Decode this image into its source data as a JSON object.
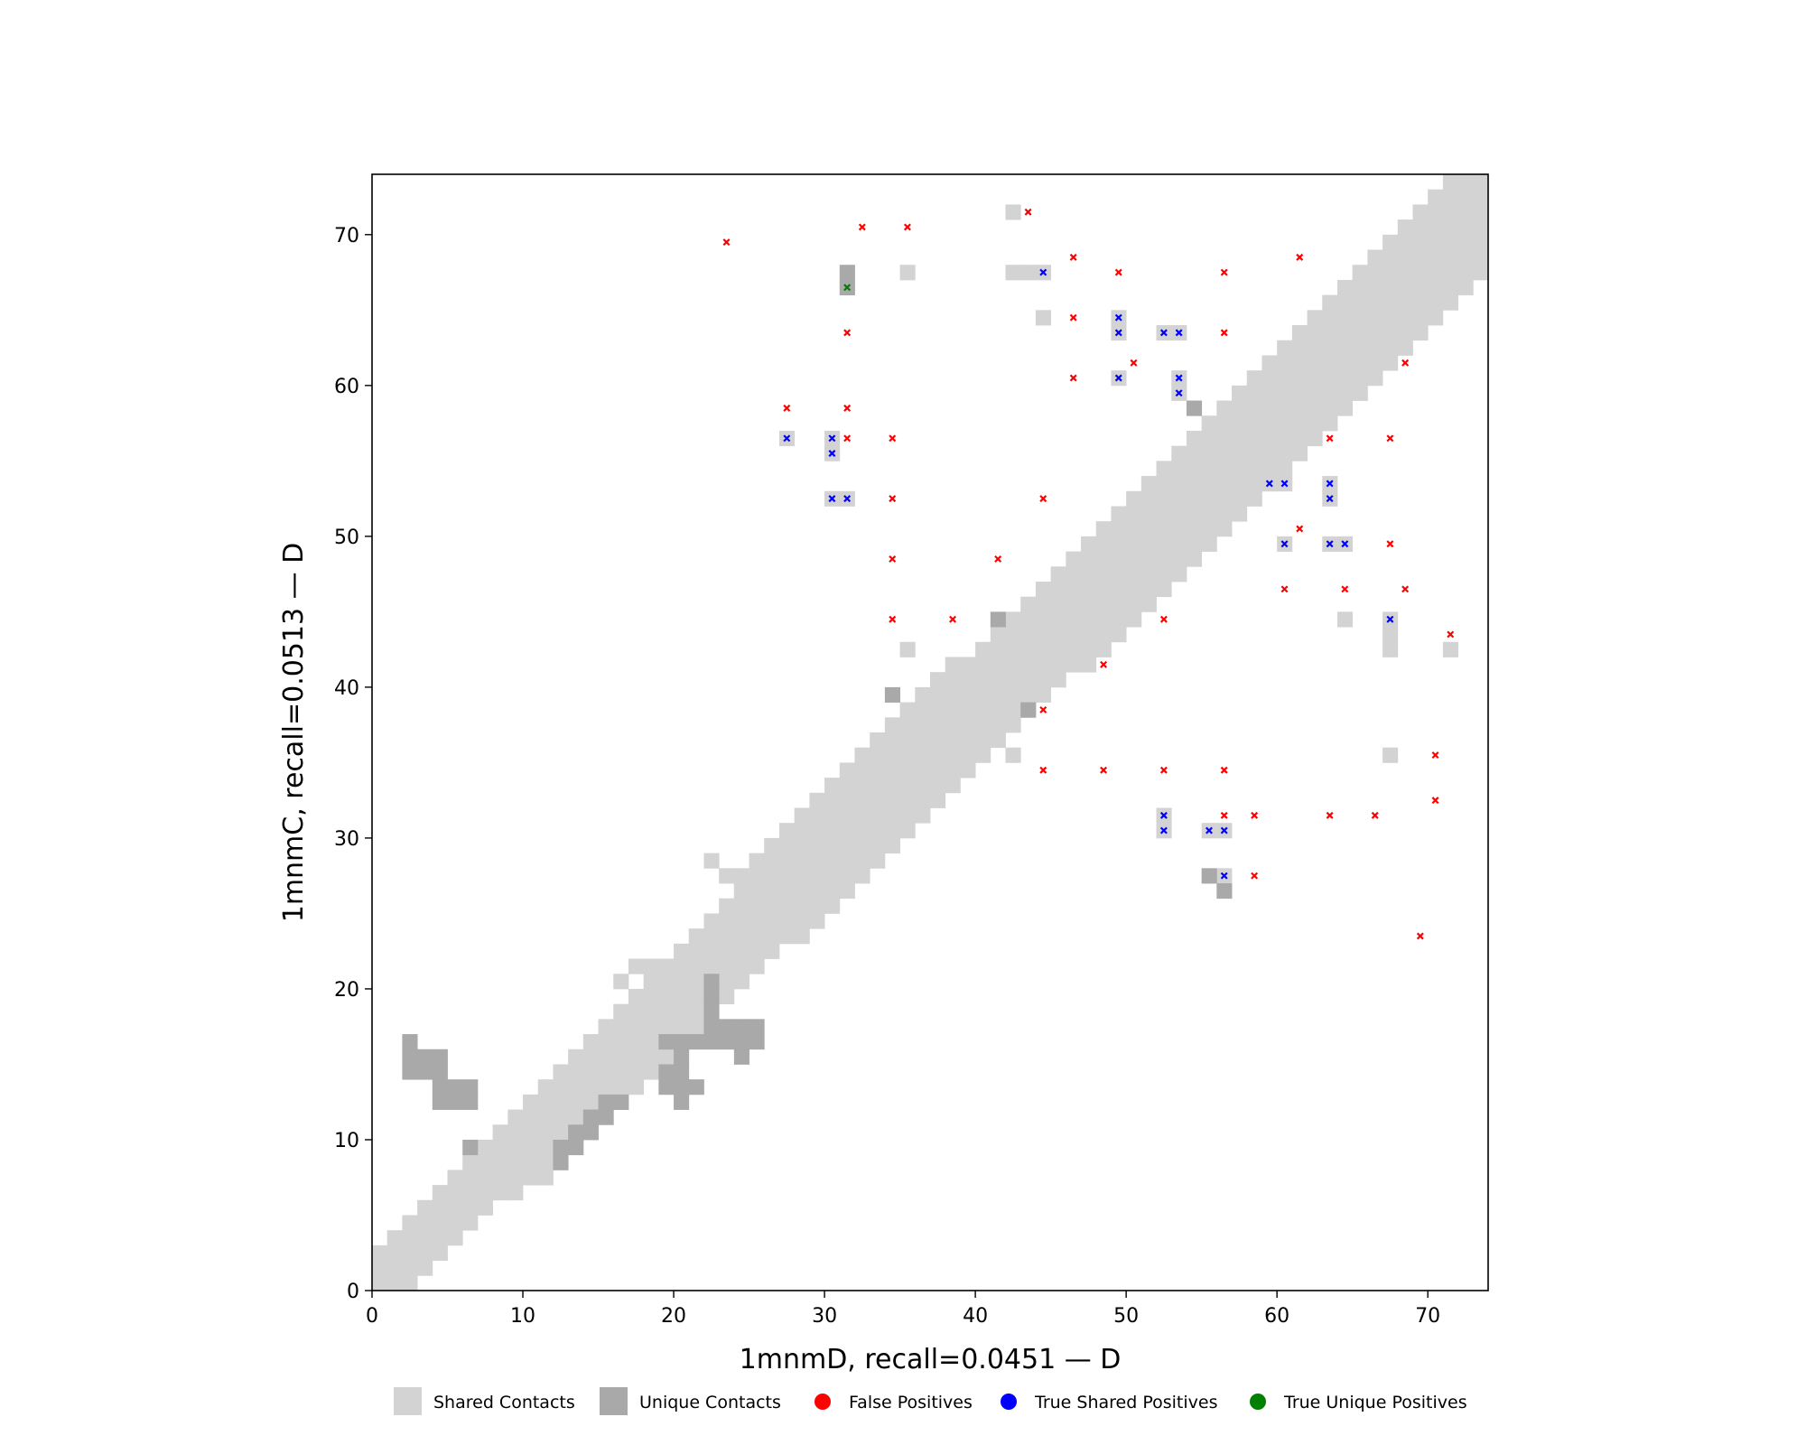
{
  "chart_data": {
    "type": "heatmap",
    "title": "",
    "xlabel": "1mnmD, recall=0.0451 — D",
    "ylabel": "1mnmC, recall=0.0513 — D",
    "xlim": [
      0,
      74
    ],
    "ylim": [
      0,
      74
    ],
    "xticks": [
      0,
      10,
      20,
      30,
      40,
      50,
      60,
      70
    ],
    "yticks": [
      0,
      10,
      20,
      30,
      40,
      50,
      60,
      70
    ],
    "legend_position": "bottom",
    "legend": [
      {
        "label": "Shared Contacts",
        "kind": "square",
        "color": "#d3d3d3"
      },
      {
        "label": "Unique Contacts",
        "kind": "square",
        "color": "#a9a9a9"
      },
      {
        "label": "False Positives",
        "kind": "dot",
        "color": "#ff0000"
      },
      {
        "label": "True Shared Positives",
        "kind": "dot",
        "color": "#0000ff"
      },
      {
        "label": "True Unique Positives",
        "kind": "dot",
        "color": "#008000"
      }
    ],
    "band_profile": [
      [
        0,
        0,
        2
      ],
      [
        1,
        0,
        3
      ],
      [
        2,
        0,
        4
      ],
      [
        3,
        1,
        5
      ],
      [
        4,
        2,
        6
      ],
      [
        5,
        3,
        7
      ],
      [
        6,
        4,
        8
      ],
      [
        7,
        5,
        9
      ],
      [
        8,
        6,
        10
      ],
      [
        9,
        6,
        11
      ],
      [
        10,
        7,
        12
      ],
      [
        11,
        7,
        13
      ],
      [
        12,
        8,
        14
      ],
      [
        13,
        9,
        15
      ],
      [
        14,
        10,
        16
      ],
      [
        15,
        11,
        17
      ],
      [
        16,
        12,
        18
      ],
      [
        17,
        13,
        19
      ],
      [
        18,
        14,
        20
      ],
      [
        19,
        15,
        21
      ],
      [
        20,
        16,
        22
      ],
      [
        21,
        17,
        23
      ],
      [
        22,
        18,
        24
      ],
      [
        23,
        19,
        25
      ],
      [
        24,
        20,
        27
      ],
      [
        25,
        21,
        28
      ],
      [
        26,
        22,
        29
      ],
      [
        27,
        23,
        30
      ],
      [
        28,
        23,
        31
      ],
      [
        29,
        24,
        32
      ],
      [
        30,
        25,
        33
      ],
      [
        31,
        26,
        34
      ],
      [
        32,
        27,
        35
      ],
      [
        33,
        28,
        36
      ],
      [
        34,
        29,
        37
      ],
      [
        35,
        30,
        38
      ],
      [
        36,
        31,
        39
      ],
      [
        37,
        32,
        40
      ],
      [
        38,
        33,
        41
      ],
      [
        39,
        34,
        41
      ],
      [
        40,
        35,
        42
      ],
      [
        41,
        36,
        43
      ],
      [
        42,
        37,
        44
      ],
      [
        43,
        38,
        45
      ],
      [
        44,
        39,
        46
      ],
      [
        45,
        40,
        47
      ],
      [
        46,
        41,
        48
      ],
      [
        47,
        41,
        49
      ],
      [
        48,
        42,
        50
      ],
      [
        49,
        43,
        51
      ],
      [
        50,
        44,
        52
      ],
      [
        51,
        45,
        53
      ],
      [
        52,
        46,
        54
      ],
      [
        53,
        47,
        55
      ],
      [
        54,
        48,
        56
      ],
      [
        55,
        49,
        57
      ],
      [
        56,
        50,
        58
      ],
      [
        57,
        51,
        59
      ],
      [
        58,
        52,
        60
      ],
      [
        59,
        53,
        61
      ],
      [
        60,
        54,
        62
      ],
      [
        61,
        55,
        63
      ],
      [
        62,
        56,
        64
      ],
      [
        63,
        57,
        65
      ],
      [
        64,
        58,
        66
      ],
      [
        65,
        59,
        67
      ],
      [
        66,
        60,
        68
      ],
      [
        67,
        61,
        69
      ],
      [
        68,
        62,
        70
      ],
      [
        69,
        63,
        71
      ],
      [
        70,
        64,
        72
      ],
      [
        71,
        65,
        73
      ],
      [
        72,
        66,
        73
      ],
      [
        73,
        67,
        73
      ]
    ],
    "shared_contacts": [
      [
        35,
        67
      ],
      [
        42,
        71
      ],
      [
        42,
        67
      ],
      [
        43,
        67
      ],
      [
        44,
        67
      ],
      [
        44,
        64
      ],
      [
        49,
        64
      ],
      [
        49,
        63
      ],
      [
        49,
        60
      ],
      [
        52,
        63
      ],
      [
        53,
        63
      ],
      [
        53,
        60
      ],
      [
        53,
        59
      ],
      [
        27,
        56
      ],
      [
        30,
        56
      ],
      [
        30,
        55
      ],
      [
        30,
        52
      ],
      [
        31,
        52
      ],
      [
        59,
        53
      ],
      [
        60,
        53
      ],
      [
        63,
        53
      ],
      [
        63,
        52
      ],
      [
        60,
        49
      ],
      [
        63,
        49
      ],
      [
        64,
        49
      ],
      [
        64,
        44
      ],
      [
        67,
        44
      ],
      [
        67,
        43
      ],
      [
        67,
        42
      ],
      [
        71,
        42
      ],
      [
        35,
        42
      ],
      [
        42,
        35
      ],
      [
        67,
        35
      ],
      [
        52,
        31
      ],
      [
        52,
        30
      ],
      [
        55,
        30
      ],
      [
        56,
        30
      ],
      [
        56,
        27
      ],
      [
        22,
        28
      ],
      [
        23,
        27
      ],
      [
        24,
        26
      ],
      [
        17,
        21
      ],
      [
        18,
        21
      ],
      [
        16,
        20
      ]
    ],
    "unique_contacts": [
      [
        31,
        67
      ],
      [
        31,
        66
      ],
      [
        54,
        58
      ],
      [
        41,
        44
      ],
      [
        34,
        39
      ],
      [
        43,
        38
      ],
      [
        55,
        27
      ],
      [
        56,
        26
      ],
      [
        2,
        16
      ],
      [
        2,
        15
      ],
      [
        2,
        14
      ],
      [
        3,
        15
      ],
      [
        3,
        14
      ],
      [
        4,
        15
      ],
      [
        4,
        14
      ],
      [
        4,
        13
      ],
      [
        4,
        12
      ],
      [
        5,
        13
      ],
      [
        5,
        12
      ],
      [
        6,
        13
      ],
      [
        6,
        12
      ],
      [
        6,
        9
      ],
      [
        12,
        8
      ],
      [
        12,
        9
      ],
      [
        13,
        9
      ],
      [
        13,
        10
      ],
      [
        14,
        10
      ],
      [
        14,
        11
      ],
      [
        15,
        11
      ],
      [
        15,
        12
      ],
      [
        16,
        12
      ],
      [
        22,
        20
      ],
      [
        22,
        19
      ],
      [
        22,
        18
      ],
      [
        22,
        17
      ],
      [
        22,
        16
      ],
      [
        21,
        16
      ],
      [
        20,
        16
      ],
      [
        19,
        16
      ],
      [
        23,
        17
      ],
      [
        23,
        16
      ],
      [
        24,
        17
      ],
      [
        24,
        16
      ],
      [
        25,
        17
      ],
      [
        25,
        16
      ],
      [
        24,
        15
      ],
      [
        19,
        14
      ],
      [
        19,
        13
      ],
      [
        20,
        15
      ],
      [
        20,
        14
      ],
      [
        20,
        13
      ],
      [
        20,
        12
      ],
      [
        21,
        13
      ]
    ],
    "false_positives": [
      [
        23,
        69
      ],
      [
        32,
        70
      ],
      [
        35,
        70
      ],
      [
        43,
        71
      ],
      [
        46,
        68
      ],
      [
        49,
        67
      ],
      [
        56,
        67
      ],
      [
        61,
        68
      ],
      [
        31,
        63
      ],
      [
        46,
        64
      ],
      [
        56,
        63
      ],
      [
        50,
        61
      ],
      [
        46,
        60
      ],
      [
        68,
        61
      ],
      [
        27,
        58
      ],
      [
        31,
        58
      ],
      [
        31,
        56
      ],
      [
        34,
        56
      ],
      [
        63,
        56
      ],
      [
        67,
        56
      ],
      [
        34,
        52
      ],
      [
        44,
        52
      ],
      [
        61,
        50
      ],
      [
        67,
        49
      ],
      [
        34,
        48
      ],
      [
        41,
        48
      ],
      [
        60,
        46
      ],
      [
        64,
        46
      ],
      [
        68,
        46
      ],
      [
        34,
        44
      ],
      [
        38,
        44
      ],
      [
        52,
        44
      ],
      [
        71,
        43
      ],
      [
        48,
        41
      ],
      [
        44,
        38
      ],
      [
        70,
        35
      ],
      [
        44,
        34
      ],
      [
        48,
        34
      ],
      [
        52,
        34
      ],
      [
        56,
        34
      ],
      [
        70,
        32
      ],
      [
        56,
        31
      ],
      [
        58,
        31
      ],
      [
        63,
        31
      ],
      [
        66,
        31
      ],
      [
        58,
        27
      ],
      [
        69,
        23
      ]
    ],
    "true_shared_positives": [
      [
        44,
        67
      ],
      [
        49,
        64
      ],
      [
        49,
        63
      ],
      [
        52,
        63
      ],
      [
        53,
        63
      ],
      [
        49,
        60
      ],
      [
        53,
        60
      ],
      [
        53,
        59
      ],
      [
        27,
        56
      ],
      [
        30,
        56
      ],
      [
        30,
        55
      ],
      [
        30,
        52
      ],
      [
        31,
        52
      ],
      [
        59,
        53
      ],
      [
        60,
        53
      ],
      [
        63,
        53
      ],
      [
        63,
        52
      ],
      [
        60,
        49
      ],
      [
        63,
        49
      ],
      [
        64,
        49
      ],
      [
        67,
        44
      ],
      [
        52,
        31
      ],
      [
        52,
        30
      ],
      [
        55,
        30
      ],
      [
        56,
        30
      ],
      [
        56,
        27
      ]
    ],
    "true_unique_positives": [
      [
        31,
        66
      ]
    ]
  }
}
